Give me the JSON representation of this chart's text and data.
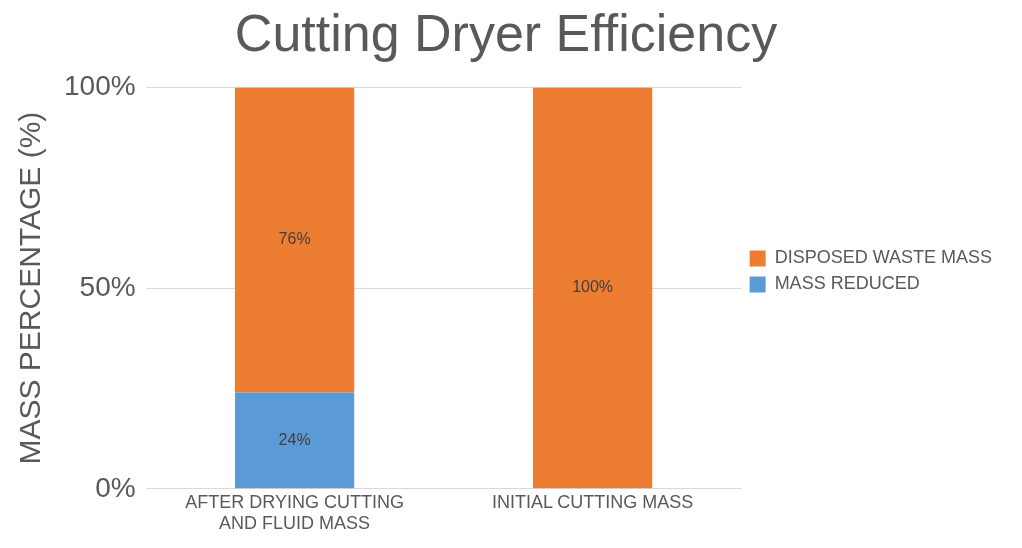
{
  "chart_data": {
    "type": "bar",
    "title": "Cutting Dryer Efficiency",
    "ylabel": "MASS PERCENTAGE (%)",
    "categories": [
      "AFTER DRYING CUTTING AND FLUID MASS",
      "INITIAL CUTTING MASS"
    ],
    "stacked": true,
    "series": [
      {
        "name": "MASS REDUCED",
        "color": "#5b9bd5",
        "values": [
          24,
          null
        ],
        "value_labels": [
          "24%",
          null
        ]
      },
      {
        "name": "DISPOSED WASTE MASS",
        "color": "#ed7d31",
        "values": [
          76,
          100
        ],
        "value_labels": [
          "76%",
          "100%"
        ]
      }
    ],
    "ylim": [
      0,
      100
    ],
    "yticks": [
      {
        "value": 0,
        "label": "0%"
      },
      {
        "value": 50,
        "label": "50%"
      },
      {
        "value": 100,
        "label": "100%"
      }
    ],
    "grid": "y",
    "legend": "right"
  }
}
